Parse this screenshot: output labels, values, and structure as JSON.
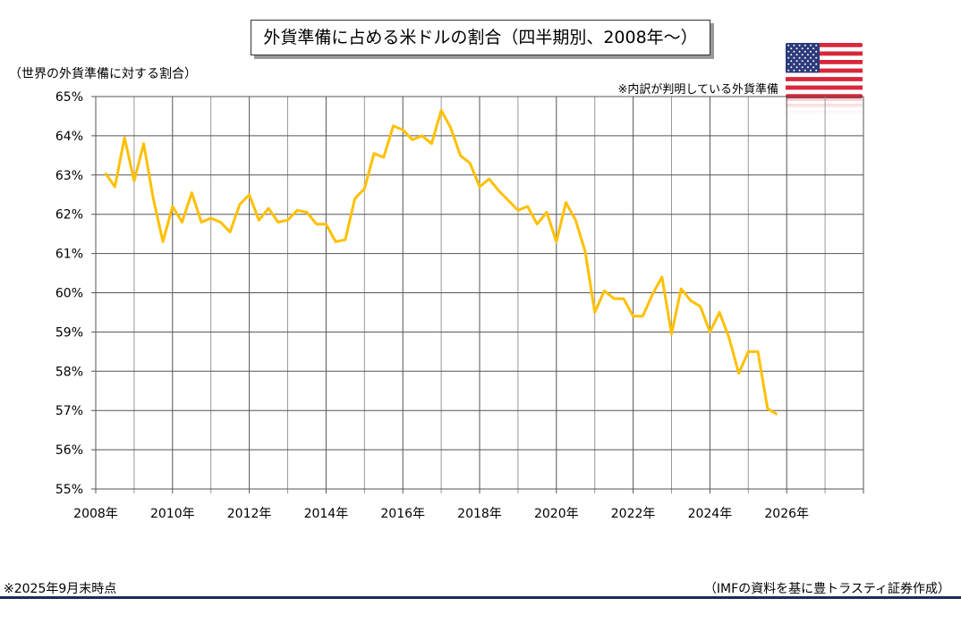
{
  "chart_data": {
    "type": "line",
    "title": "外貨準備に占める米ドルの割合（四半期別、2008年～）",
    "ylabel": "（世界の外貨準備に対する割合）",
    "annotation": "※内訳が判明している外貨準備",
    "ylim": [
      55,
      65
    ],
    "xlim": [
      2008,
      2028
    ],
    "yticks": [
      "55%",
      "56%",
      "57%",
      "58%",
      "59%",
      "60%",
      "61%",
      "62%",
      "63%",
      "64%",
      "65%"
    ],
    "xticks": [
      "2008年",
      "2010年",
      "2012年",
      "2014年",
      "2016年",
      "2018年",
      "2020年",
      "2022年",
      "2024年",
      "2026年"
    ],
    "grid": true,
    "series": [
      {
        "name": "米ドルの割合",
        "color": "#FFC000",
        "start_year": 2008,
        "frequency": "quarterly",
        "values": [
          63.05,
          62.7,
          63.95,
          62.85,
          63.8,
          62.4,
          61.3,
          62.2,
          61.8,
          62.55,
          61.8,
          61.9,
          61.8,
          61.55,
          62.25,
          62.5,
          61.85,
          62.15,
          61.8,
          61.85,
          62.1,
          62.05,
          61.75,
          61.75,
          61.3,
          61.35,
          62.4,
          62.65,
          63.55,
          63.45,
          64.25,
          64.15,
          63.9,
          64.0,
          63.8,
          64.65,
          64.2,
          63.5,
          63.3,
          62.7,
          62.9,
          62.6,
          62.35,
          62.1,
          62.2,
          61.75,
          62.05,
          61.3,
          62.3,
          61.85,
          61.05,
          59.5,
          60.05,
          59.85,
          59.85,
          59.4,
          59.4,
          59.95,
          60.4,
          58.95,
          60.1,
          59.8,
          59.65,
          59.0,
          59.5,
          58.85,
          57.95,
          58.5,
          58.5,
          57.05,
          56.9
        ]
      }
    ]
  },
  "footer": {
    "asof": "※2025年9月末時点",
    "source": "（IMFの資料を基に豊トラスティ証券作成）"
  },
  "icons": {
    "flag": "us-flag-icon"
  }
}
